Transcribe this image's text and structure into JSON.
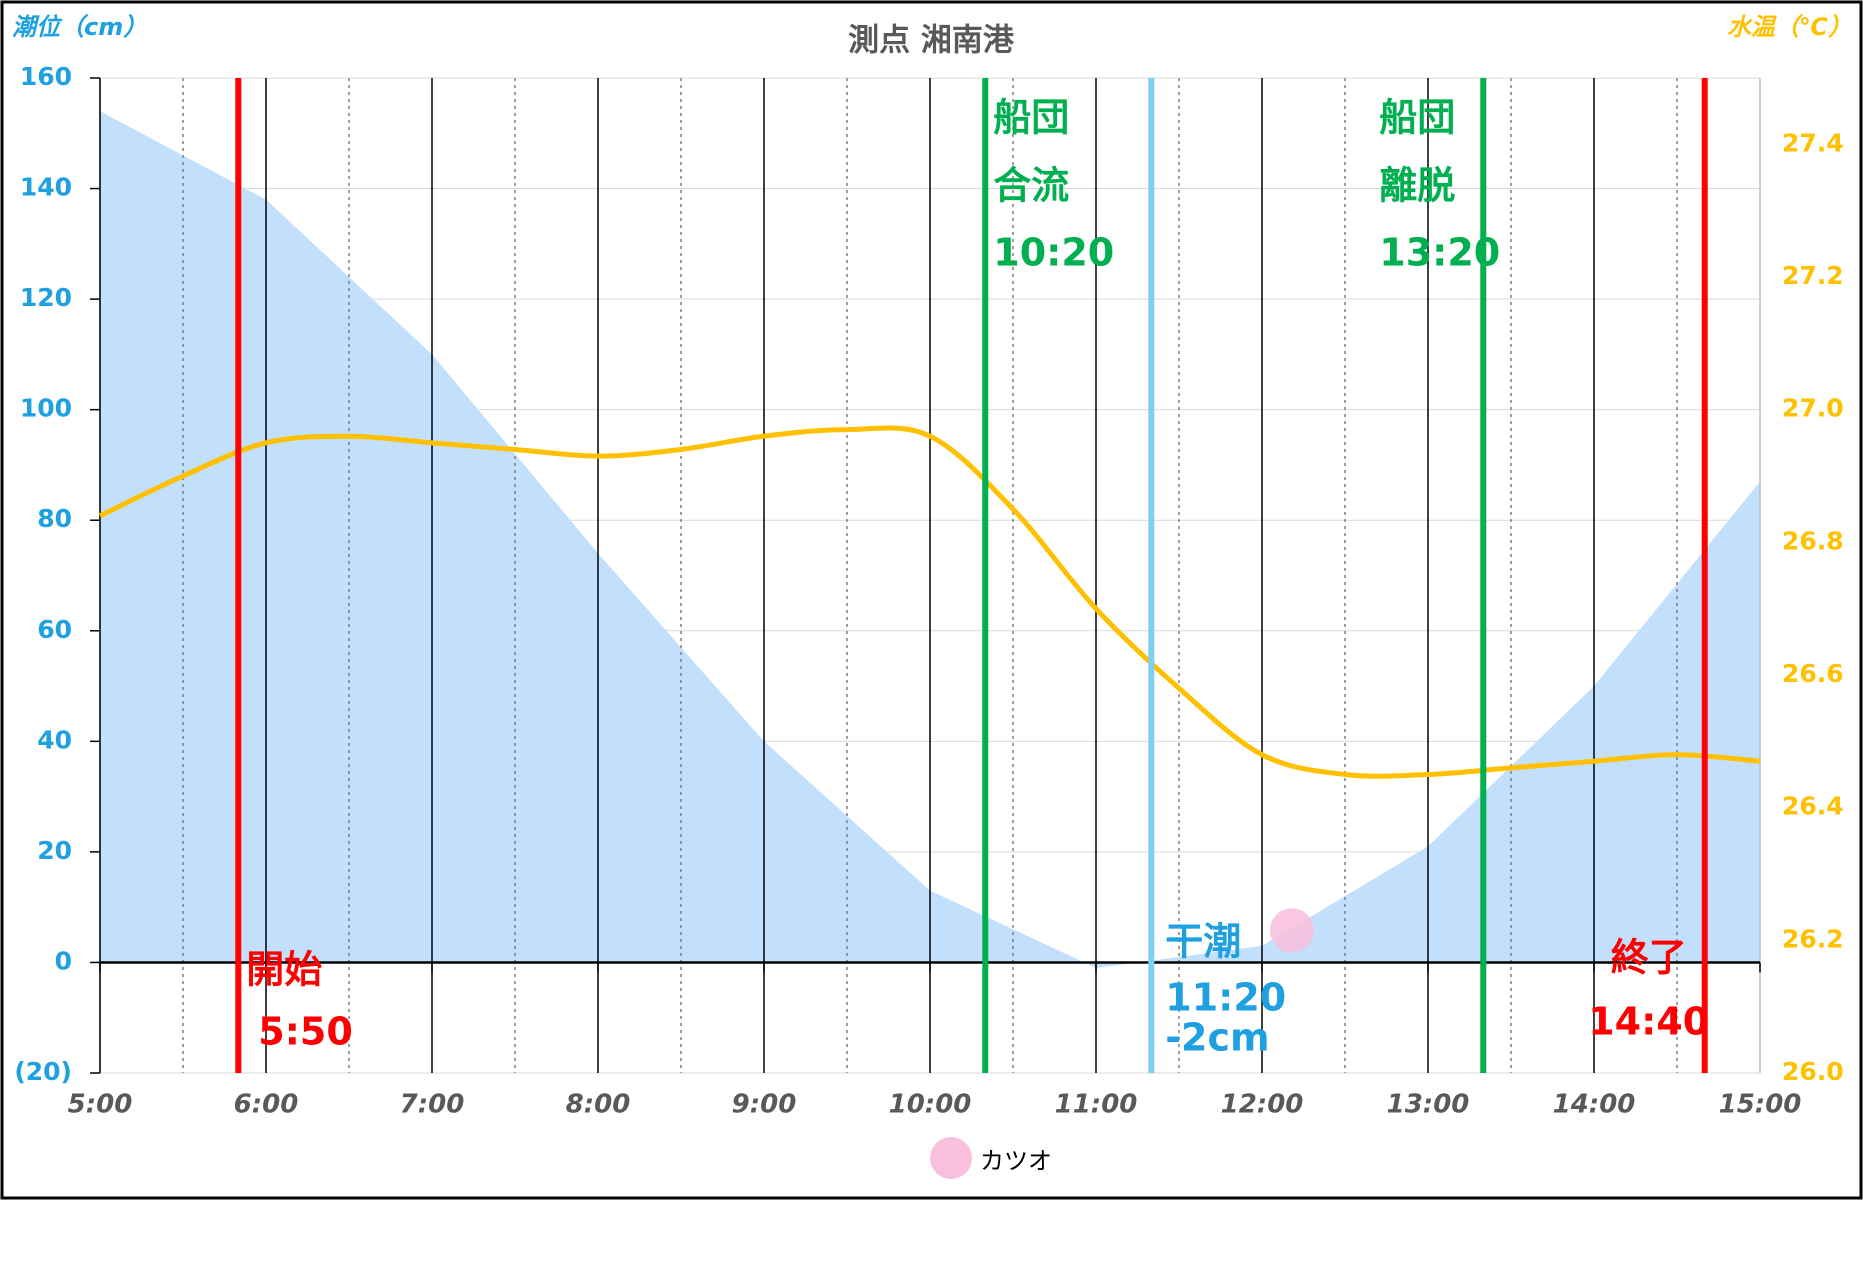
{
  "chart_data": {
    "type": "area-line",
    "title": "測点 湘南港",
    "ylabel": "潮位（cm）",
    "y2label": "水温（℃）",
    "xlim": [
      5,
      15
    ],
    "xticks": [
      {
        "value": 5,
        "label": "5:00"
      },
      {
        "value": 6,
        "label": "6:00"
      },
      {
        "value": 7,
        "label": "7:00"
      },
      {
        "value": 8,
        "label": "8:00"
      },
      {
        "value": 9,
        "label": "9:00"
      },
      {
        "value": 10,
        "label": "10:00"
      },
      {
        "value": 11,
        "label": "11:00"
      },
      {
        "value": 12,
        "label": "12:00"
      },
      {
        "value": 13,
        "label": "13:00"
      },
      {
        "value": 14,
        "label": "14:00"
      },
      {
        "value": 15,
        "label": "15:00"
      }
    ],
    "ylim": [
      -20,
      160
    ],
    "yticks": [
      {
        "value": -20,
        "label": "(20)"
      },
      0,
      20,
      40,
      60,
      80,
      100,
      120,
      140,
      160
    ],
    "y2lim": [
      26.0,
      27.5
    ],
    "y2ticks": [
      {
        "value": 26.0,
        "label": "26.0"
      },
      {
        "value": 26.2,
        "label": "26.2"
      },
      {
        "value": 26.4,
        "label": "26.4"
      },
      {
        "value": 26.6,
        "label": "26.6"
      },
      {
        "value": 26.8,
        "label": "26.8"
      },
      {
        "value": 27.0,
        "label": "27.0"
      },
      {
        "value": 27.2,
        "label": "27.2"
      },
      {
        "value": 27.4,
        "label": "27.4"
      }
    ],
    "grid": true,
    "series": [
      {
        "type": "area",
        "color": "#c2dffc",
        "x": [
          5,
          6,
          7,
          8,
          9,
          10,
          11,
          12,
          13,
          14,
          15
        ],
        "values": [
          154,
          138,
          110,
          74,
          40,
          13,
          -1,
          3,
          21,
          50,
          87
        ]
      },
      {
        "type": "line",
        "axis": "y2",
        "color": "#ffc000",
        "x": [
          5,
          5.5,
          6,
          6.5,
          7,
          7.5,
          8,
          8.5,
          9,
          9.5,
          10,
          10.5,
          11,
          11.5,
          12,
          12.5,
          13,
          13.5,
          14,
          14.5,
          15
        ],
        "values": [
          26.84,
          26.9,
          26.95,
          26.96,
          26.95,
          26.94,
          26.93,
          26.94,
          26.96,
          26.97,
          26.96,
          26.85,
          26.7,
          26.58,
          26.48,
          26.45,
          26.45,
          26.46,
          26.47,
          26.48,
          26.47
        ]
      },
      {
        "type": "scatter",
        "name": "カツオ",
        "color": "#f9bfdc",
        "x": [
          12.18
        ],
        "values": [
          5.8
        ]
      }
    ],
    "events": [
      {
        "x": 5.833,
        "color": "#ff0000",
        "lines": [
          "開始",
          "5:50"
        ]
      },
      {
        "x": 10.333,
        "color": "#00b050",
        "lines": [
          "船団",
          "合流",
          "10:20"
        ]
      },
      {
        "x": 11.333,
        "color": "#7fd0f0",
        "lines": [
          "干潮",
          "11:20",
          "-2cm"
        ]
      },
      {
        "x": 13.333,
        "color": "#00b050",
        "lines": [
          "船団",
          "離脱",
          "13:20"
        ]
      },
      {
        "x": 14.667,
        "color": "#ff0000",
        "lines": [
          "終了",
          "14:40"
        ]
      }
    ]
  }
}
